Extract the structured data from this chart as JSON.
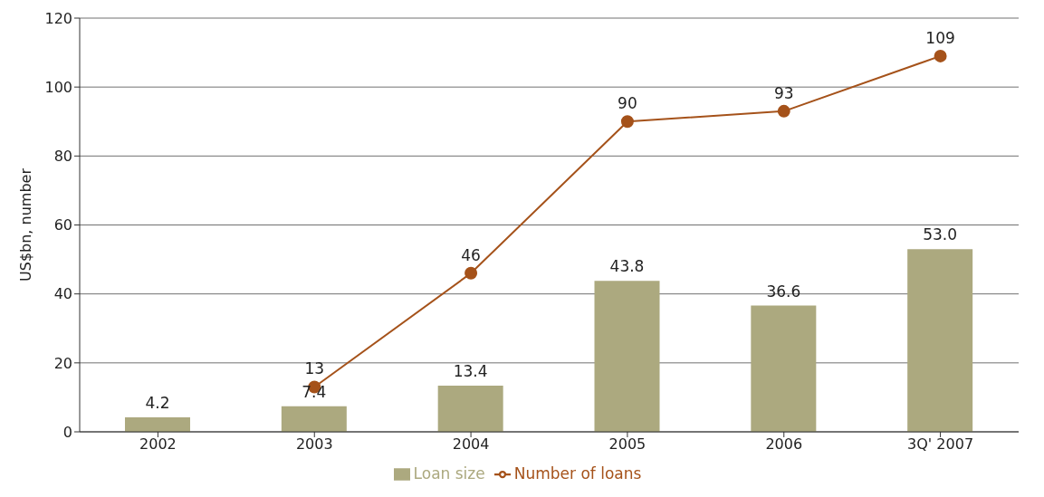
{
  "chart_data": {
    "type": "bar",
    "ylabel": "US$bn, number",
    "categories": [
      "2002",
      "2003",
      "2004",
      "2005",
      "2006",
      "3Q' 2007"
    ],
    "series": [
      {
        "name": "Loan size",
        "color": "#aca97f",
        "values": [
          4.2,
          7.4,
          13.4,
          43.8,
          36.6,
          53.0
        ],
        "value_labels": [
          "4.2",
          "7.4",
          "13.4",
          "43.8",
          "36.6",
          "53.0"
        ]
      },
      {
        "name": "Number of loans",
        "type": "line",
        "color": "#a5521a",
        "values": [
          null,
          13,
          46,
          90,
          93,
          109
        ],
        "value_labels": [
          null,
          "13",
          "46",
          "90",
          "93",
          "109"
        ]
      }
    ],
    "ylim": [
      0,
      120
    ],
    "yticks": [
      0,
      20,
      40,
      60,
      80,
      100,
      120
    ],
    "grid": "y",
    "legend": "bottom",
    "marker": "circle"
  }
}
